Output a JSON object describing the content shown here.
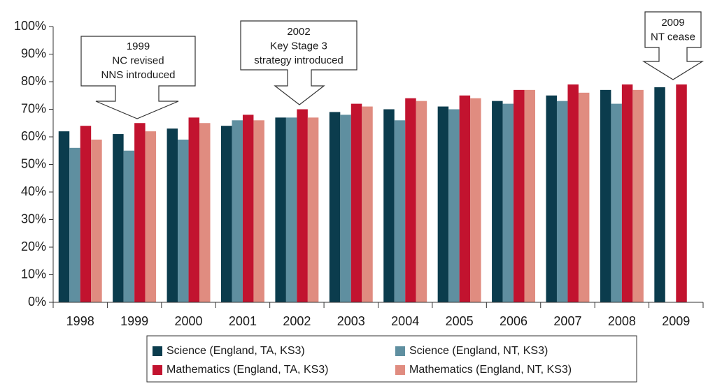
{
  "chart_data": {
    "type": "bar",
    "categories": [
      "1998",
      "1999",
      "2000",
      "2001",
      "2002",
      "2003",
      "2004",
      "2005",
      "2006",
      "2007",
      "2008",
      "2009"
    ],
    "series": [
      {
        "name": "Science (England, TA, KS3)",
        "color": "#0b3c4d",
        "values": [
          62,
          61,
          63,
          64,
          67,
          69,
          70,
          71,
          73,
          75,
          77,
          78
        ]
      },
      {
        "name": "Science (England, NT, KS3)",
        "color": "#5f8fa0",
        "values": [
          56,
          55,
          59,
          66,
          67,
          68,
          66,
          70,
          72,
          73,
          72,
          null
        ]
      },
      {
        "name": "Mathematics (England, TA, KS3)",
        "color": "#c2132f",
        "values": [
          64,
          65,
          67,
          68,
          70,
          72,
          74,
          75,
          77,
          79,
          79,
          79
        ]
      },
      {
        "name": "Mathematics (England, NT, KS3)",
        "color": "#e08c80",
        "values": [
          59,
          62,
          65,
          66,
          67,
          71,
          73,
          74,
          77,
          76,
          77,
          null
        ]
      }
    ],
    "ylim": [
      0,
      100
    ],
    "yticks": [
      {
        "value": 0,
        "label": "0%"
      },
      {
        "value": 10,
        "label": "10%"
      },
      {
        "value": 20,
        "label": "20%"
      },
      {
        "value": 30,
        "label": "30%"
      },
      {
        "value": 40,
        "label": "40%"
      },
      {
        "value": 50,
        "label": "50%"
      },
      {
        "value": 60,
        "label": "60%"
      },
      {
        "value": 70,
        "label": "70%"
      },
      {
        "value": 80,
        "label": "80%"
      },
      {
        "value": 90,
        "label": "90%"
      },
      {
        "value": 100,
        "label": "100%"
      }
    ],
    "grid": false,
    "legend": "bottom",
    "annotations": [
      {
        "lines": [
          "1999",
          "NC revised",
          "NNS introduced"
        ]
      },
      {
        "lines": [
          "2002",
          "Key Stage 3",
          "strategy introduced"
        ]
      },
      {
        "lines": [
          "2009",
          "NT cease"
        ]
      }
    ]
  }
}
